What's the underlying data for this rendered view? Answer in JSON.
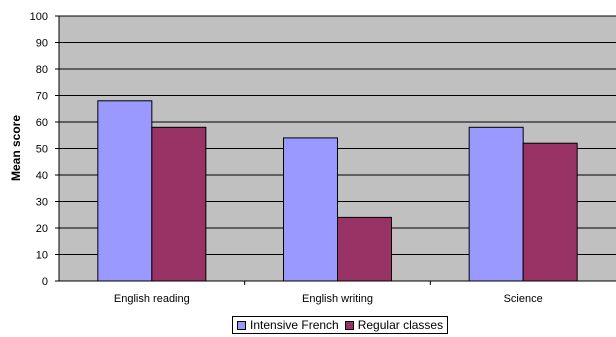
{
  "chart_data": {
    "type": "bar",
    "title": "",
    "xlabel": "",
    "ylabel": "Mean score",
    "ylim": [
      0,
      100
    ],
    "yticks": [
      "0",
      "10",
      "20",
      "30",
      "40",
      "50",
      "60",
      "70",
      "80",
      "90",
      "100"
    ],
    "grid": true,
    "legend_position": "bottom",
    "categories": [
      "English reading",
      "English writing",
      "Science"
    ],
    "series": [
      {
        "name": "Intensive French",
        "values": [
          68,
          54,
          58
        ],
        "color": "#9999ff"
      },
      {
        "name": "Regular classes",
        "values": [
          58,
          24,
          52
        ],
        "color": "#993366"
      }
    ],
    "plot_background": "#c0c0c0"
  }
}
